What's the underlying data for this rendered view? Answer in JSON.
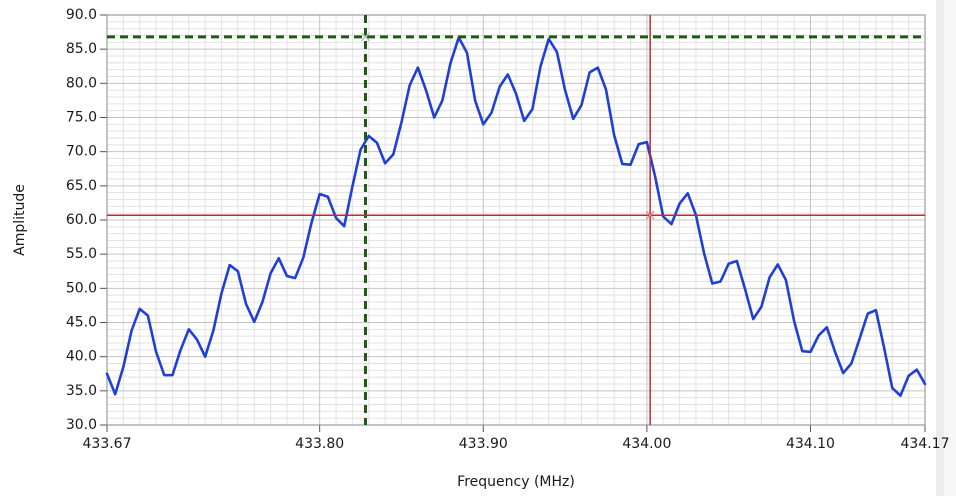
{
  "chart_data": {
    "type": "line",
    "xlabel": "Frequency (MHz)",
    "ylabel": "Amplitude",
    "xlim": [
      433.67,
      434.17
    ],
    "ylim": [
      30,
      90
    ],
    "xticks": [
      433.67,
      {
        "value": 433.8,
        "label": "433.80"
      },
      {
        "value": 433.9,
        "label": "433.90"
      },
      {
        "value": 434.0,
        "label": "434.00"
      },
      {
        "value": 434.1,
        "label": "434.10"
      },
      434.17
    ],
    "yticks": [
      {
        "value": 30,
        "label": "30.0"
      },
      {
        "value": 35,
        "label": "35.0"
      },
      {
        "value": 40,
        "label": "40.0"
      },
      {
        "value": 45,
        "label": "45.0"
      },
      {
        "value": 50,
        "label": "50.0"
      },
      {
        "value": 55,
        "label": "55.0"
      },
      {
        "value": 60,
        "label": "60.0"
      },
      {
        "value": 65,
        "label": "65.0"
      },
      {
        "value": 70,
        "label": "70.0"
      },
      {
        "value": 75,
        "label": "75.0"
      },
      {
        "value": 80,
        "label": "80.0"
      },
      {
        "value": 85,
        "label": "85.0"
      },
      {
        "value": 90,
        "label": "90.0"
      }
    ],
    "grid": true,
    "minor_grid": true,
    "x": [
      433.67,
      433.675,
      433.68,
      433.685,
      433.69,
      433.695,
      433.7,
      433.705,
      433.71,
      433.715,
      433.72,
      433.725,
      433.73,
      433.735,
      433.74,
      433.745,
      433.75,
      433.755,
      433.76,
      433.765,
      433.77,
      433.775,
      433.78,
      433.785,
      433.79,
      433.795,
      433.8,
      433.805,
      433.81,
      433.815,
      433.82,
      433.825,
      433.83,
      433.835,
      433.84,
      433.845,
      433.85,
      433.855,
      433.86,
      433.865,
      433.87,
      433.875,
      433.88,
      433.885,
      433.89,
      433.895,
      433.9,
      433.905,
      433.91,
      433.915,
      433.92,
      433.925,
      433.93,
      433.935,
      433.94,
      433.945,
      433.95,
      433.955,
      433.96,
      433.965,
      433.97,
      433.975,
      433.98,
      433.985,
      433.99,
      433.995,
      434.0,
      434.005,
      434.01,
      434.015,
      434.02,
      434.025,
      434.03,
      434.035,
      434.04,
      434.045,
      434.05,
      434.055,
      434.06,
      434.065,
      434.07,
      434.075,
      434.08,
      434.085,
      434.09,
      434.095,
      434.1,
      434.105,
      434.11,
      434.115,
      434.12,
      434.125,
      434.13,
      434.135,
      434.14,
      434.145,
      434.15,
      434.155,
      434.16,
      434.165,
      434.17
    ],
    "series": [
      {
        "color": "#1f3fd8",
        "values": [
          37.5,
          34.5,
          38.5,
          43.8,
          47,
          46,
          40.7,
          37.3,
          37.3,
          41,
          44,
          42.5,
          40,
          43.8,
          49.3,
          53.4,
          52.5,
          47.7,
          45.1,
          48,
          52.2,
          54.4,
          51.8,
          51.5,
          54.5,
          59.6,
          63.8,
          63.4,
          60.3,
          59.1,
          64.9,
          70.3,
          72.3,
          71.3,
          68.3,
          69.6,
          74.3,
          79.7,
          82.3,
          79,
          75,
          77.5,
          83,
          86.7,
          84.5,
          77.5,
          74,
          75.7,
          79.5,
          81.3,
          78.5,
          74.5,
          76.2,
          82.5,
          86.5,
          84.6,
          79,
          74.8,
          76.8,
          81.6,
          82.3,
          79.1,
          72.4,
          68.2,
          68.1,
          71.1,
          71.4,
          66.4,
          60.5,
          59.4,
          62.4,
          63.9,
          60.7,
          55.1,
          50.7,
          51,
          53.6,
          54,
          49.9,
          45.5,
          47.3,
          51.6,
          53.5,
          51.2,
          45.2,
          40.8,
          40.7,
          43.1,
          44.3,
          40.7,
          37.6,
          39,
          42.6,
          46.3,
          46.8,
          41.3,
          35.4,
          34.3,
          37.2,
          38.1,
          36
        ]
      }
    ],
    "cursors": [
      {
        "x": 433.828,
        "y": 86.8,
        "color": "#1f5a14",
        "style": "dashed"
      },
      {
        "x": 434.002,
        "y": 60.7,
        "color": "#c8262a",
        "style": "solid"
      }
    ]
  }
}
